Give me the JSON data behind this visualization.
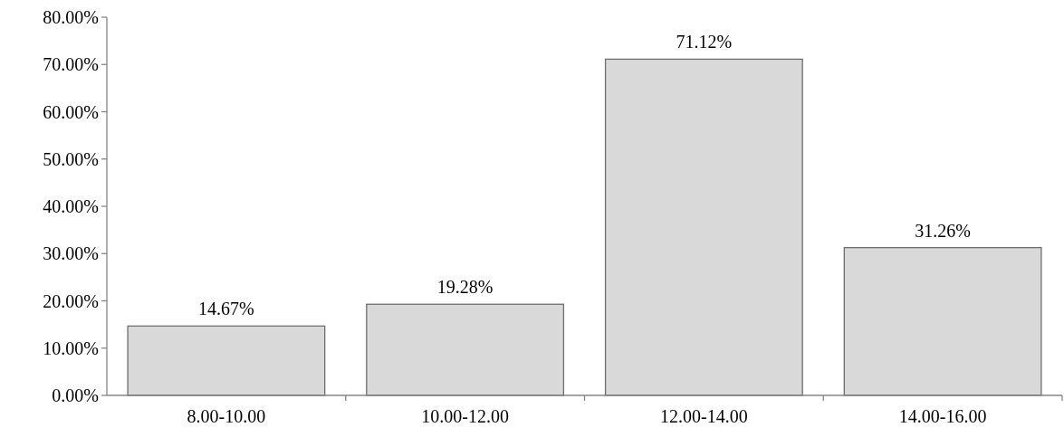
{
  "chart_data": {
    "type": "bar",
    "categories": [
      "8.00-10.00",
      "10.00-12.00",
      "12.00-14.00",
      "14.00-16.00"
    ],
    "values": [
      14.67,
      19.28,
      71.12,
      31.26
    ],
    "value_labels": [
      "14.67%",
      "19.28%",
      "71.12%",
      "31.26%"
    ],
    "color": "#d9d9d9",
    "ylim": [
      0,
      80
    ],
    "yticks": [
      {
        "value": 0,
        "label": "0.00%"
      },
      {
        "value": 10,
        "label": "10.00%"
      },
      {
        "value": 20,
        "label": "20.00%"
      },
      {
        "value": 30,
        "label": "30.00%"
      },
      {
        "value": 40,
        "label": "40.00%"
      },
      {
        "value": 50,
        "label": "50.00%"
      },
      {
        "value": 60,
        "label": "60.00%"
      },
      {
        "value": 70,
        "label": "70.00%"
      },
      {
        "value": 80,
        "label": "80.00%"
      }
    ],
    "grid": false
  }
}
